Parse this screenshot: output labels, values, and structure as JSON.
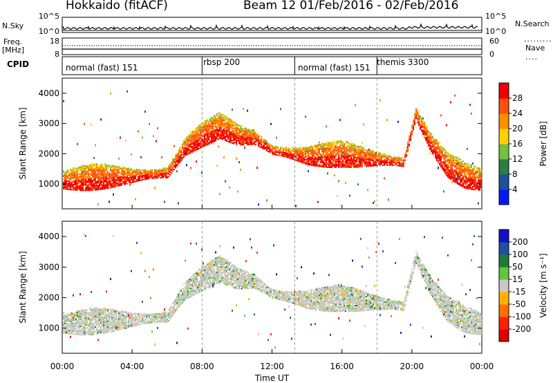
{
  "header": {
    "title_left": "Hokkaido (fitACF)",
    "title_right": "Beam 12  01/Feb/2016 - 02/Feb/2016"
  },
  "top_panel": {
    "left_label": "N.Sky",
    "left_ticks": [
      "10^5",
      "10^0"
    ],
    "right_ticks": [
      "10^5",
      "10^0"
    ],
    "right_label": "N.Search"
  },
  "freq_panel": {
    "left_label_1": "Freq.",
    "left_label_2": "[MHz]",
    "left_ticks": [
      "18",
      "8"
    ],
    "right_ticks": [
      "60",
      "0"
    ],
    "right_label": "Nave"
  },
  "cpid_panel": {
    "label": "CPID",
    "modes": [
      "normal (fast) 151",
      "rbsp 200",
      "normal (fast) 151",
      "themis 3300"
    ]
  },
  "power_panel": {
    "ylabel": "Slant Range [km]",
    "yticks": [
      "4000",
      "3000",
      "2000",
      "1000"
    ],
    "colorbar_label": "Power [dB]",
    "colorbar_ticks": [
      "28",
      "24",
      "20",
      "16",
      "12",
      "8",
      "4"
    ],
    "colors": [
      "#0018ff",
      "#1e4fa0",
      "#2a8040",
      "#74c040",
      "#ffd000",
      "#ff9000",
      "#ff5010",
      "#f00000"
    ]
  },
  "velocity_panel": {
    "ylabel": "Slant Range [km]",
    "yticks": [
      "4000",
      "3000",
      "2000",
      "1000"
    ],
    "colorbar_label": "Velocity [m s⁻¹]",
    "colorbar_ticks": [
      "200",
      "100",
      "50",
      "15",
      "-15",
      "-50",
      "-100",
      "-200"
    ],
    "colors": [
      "#1010c8",
      "#2050a0",
      "#1f7a3a",
      "#62c63c",
      "#c8c8c4",
      "#ffb000",
      "#ff7000",
      "#ff2000",
      "#e00000"
    ]
  },
  "xaxis": {
    "ticks": [
      "00:00",
      "04:00",
      "08:00",
      "12:00",
      "16:00",
      "20:00",
      "00:00"
    ],
    "label": "Time UT"
  },
  "chart_data": {
    "type": "heatmap",
    "x_range_hours": [
      0,
      24
    ],
    "y_range_km": [
      180,
      4500
    ],
    "mode_changes_hours": [
      8.0,
      13.3,
      18.0
    ],
    "power_color_levels_db": [
      4,
      8,
      12,
      16,
      20,
      24,
      28
    ],
    "velocity_color_levels_ms": [
      200,
      100,
      50,
      15,
      -15,
      -50,
      -100,
      -200
    ],
    "main_echo_band": {
      "time_h": [
        0,
        2,
        4,
        6,
        7,
        8,
        9,
        10,
        11,
        12,
        14,
        16,
        18,
        19.5,
        20.2,
        21,
        22,
        23,
        24
      ],
      "range_km": [
        1100,
        1200,
        1250,
        1350,
        2200,
        2600,
        2900,
        2600,
        2500,
        2100,
        1900,
        1950,
        1800,
        1700,
        3300,
        2400,
        1600,
        1250,
        1100
      ]
    }
  }
}
